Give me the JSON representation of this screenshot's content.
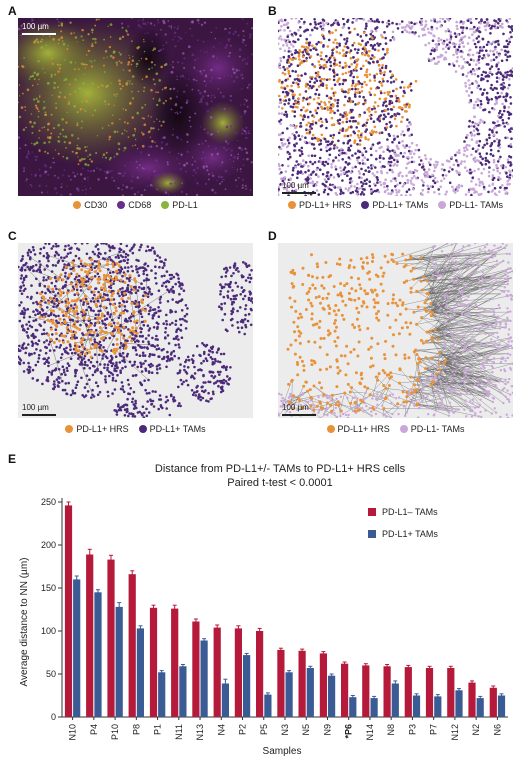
{
  "colors": {
    "hrs": "#e8923a",
    "tam_pos": "#4b2a7a",
    "tam_neg": "#c9a8d8",
    "cd68": "#6a2e8a",
    "pdl1_green": "#8ab43a",
    "bar_neg": "#b51a3a",
    "bar_pos": "#3a5b94"
  },
  "panels": {
    "a": {
      "letter": "A",
      "scale": "100 µm",
      "legend": [
        {
          "label": "CD30",
          "color": "#e8923a"
        },
        {
          "label": "CD68",
          "color": "#6a2e8a"
        },
        {
          "label": "PD-L1",
          "color": "#8ab43a"
        }
      ]
    },
    "b": {
      "letter": "B",
      "scale": "100 µm",
      "legend": [
        {
          "label": "PD-L1+ HRS",
          "color": "#e8923a"
        },
        {
          "label": "PD-L1+ TAMs",
          "color": "#4b2a7a"
        },
        {
          "label": "PD-L1- TAMs",
          "color": "#c9a8d8"
        }
      ]
    },
    "c": {
      "letter": "C",
      "scale": "100 µm",
      "legend": [
        {
          "label": "PD-L1+ HRS",
          "color": "#e8923a"
        },
        {
          "label": "PD-L1+ TAMs",
          "color": "#4b2a7a"
        }
      ]
    },
    "d": {
      "letter": "D",
      "scale": "100 µm",
      "legend": [
        {
          "label": "PD-L1+ HRS",
          "color": "#e8923a"
        },
        {
          "label": "PD-L1- TAMs",
          "color": "#c9a8d8"
        }
      ]
    },
    "e": {
      "letter": "E"
    }
  },
  "chart_data": {
    "type": "bar",
    "title": "Distance from PD-L1+/-  TAMs to PD-L1+ HRS cells",
    "subtitle": "Paired t-test < 0.0001",
    "xlabel": "Samples",
    "ylabel": "Average distance to NN (µm)",
    "ylim": [
      0,
      250
    ],
    "yticks": [
      0,
      50,
      100,
      150,
      200,
      250
    ],
    "categories": [
      "N10",
      "P4",
      "P10",
      "P8",
      "P1",
      "N11",
      "N13",
      "N4",
      "P2",
      "P5",
      "N3",
      "N5",
      "N9",
      "*P6",
      "N14",
      "N8",
      "P3",
      "P7",
      "N12",
      "N2",
      "N6"
    ],
    "series": [
      {
        "name": "PD-L1– TAMs",
        "color": "#b51a3a",
        "values": [
          246,
          189,
          183,
          166,
          127,
          126,
          111,
          104,
          103,
          100,
          78,
          77,
          74,
          62,
          60,
          59,
          58,
          57,
          57,
          40,
          34
        ],
        "errors": [
          4,
          6,
          5,
          4,
          3,
          4,
          3,
          3,
          3,
          3,
          2,
          2,
          2,
          2,
          2,
          2,
          2,
          2,
          2,
          2,
          2
        ]
      },
      {
        "name": "PD-L1+ TAMs",
        "color": "#3a5b94",
        "values": [
          160,
          145,
          128,
          103,
          52,
          59,
          89,
          39,
          72,
          26,
          52,
          57,
          48,
          23,
          22,
          39,
          25,
          24,
          31,
          22,
          25
        ],
        "errors": [
          4,
          3,
          5,
          3,
          2,
          2,
          2,
          5,
          2,
          2,
          2,
          2,
          2,
          2,
          2,
          3,
          2,
          2,
          2,
          2,
          2
        ]
      }
    ],
    "legend_position": "top-right",
    "grid": false
  }
}
